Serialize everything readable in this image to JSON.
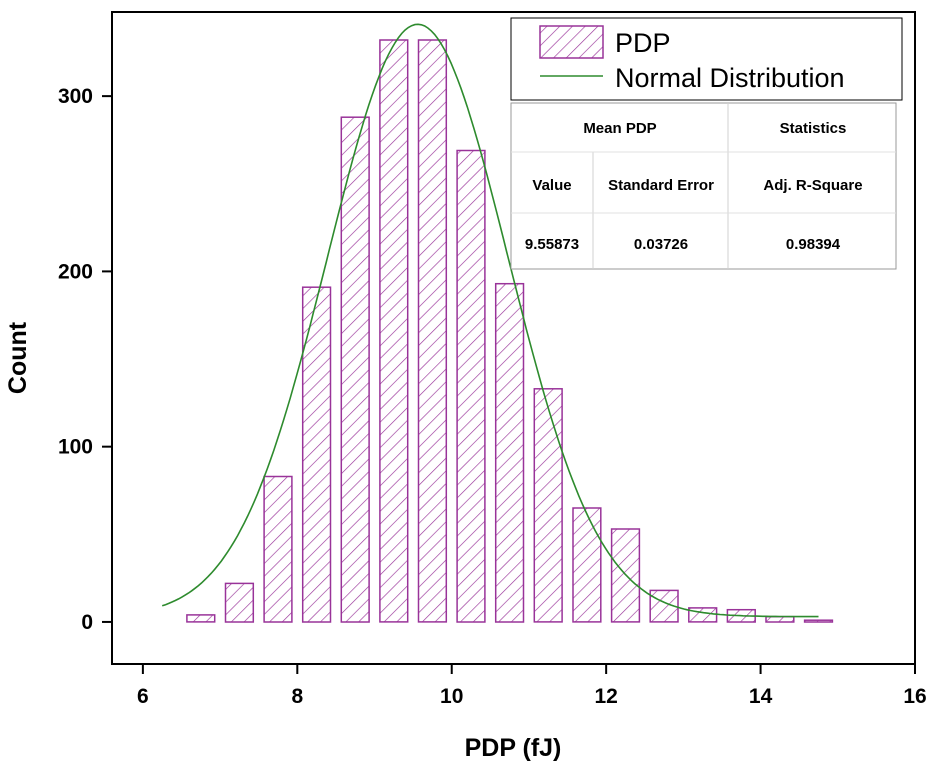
{
  "chart_data": {
    "type": "bar",
    "title": "",
    "xlabel": "PDP (fJ)",
    "ylabel": "Count",
    "xlim": [
      5.6,
      16
    ],
    "ylim": [
      -24,
      348
    ],
    "xticks": [
      6,
      8,
      10,
      12,
      14,
      16
    ],
    "yticks": [
      0,
      100,
      200,
      300
    ],
    "grid": false,
    "legend_position": "top-right",
    "bin_width": 0.5,
    "series": [
      {
        "name": "PDP",
        "kind": "histogram",
        "color": "#993399",
        "pattern": "diagonal-hatch",
        "bin_centers": [
          6.25,
          6.75,
          7.25,
          7.75,
          8.25,
          8.75,
          9.25,
          9.75,
          10.25,
          10.75,
          11.25,
          11.75,
          12.25,
          12.75,
          13.25,
          13.75,
          14.25,
          14.75
        ],
        "values": [
          0,
          4,
          22,
          83,
          191,
          288,
          332,
          332,
          269,
          193,
          133,
          65,
          53,
          18,
          8,
          7,
          3,
          1
        ]
      },
      {
        "name": "Normal Distribution",
        "kind": "line",
        "color": "#2e8b2e",
        "fit": {
          "baseline": 3,
          "mean": 9.56,
          "sigma": 1.17,
          "peak": 341,
          "x_range": [
            6.25,
            14.75
          ]
        }
      }
    ],
    "stats_table": {
      "header": [
        "Mean PDP",
        "Statistics"
      ],
      "columns": [
        "Value",
        "Standard Error",
        "Adj. R-Square"
      ],
      "values": [
        "9.55873",
        "0.03726",
        "0.98394"
      ]
    }
  }
}
